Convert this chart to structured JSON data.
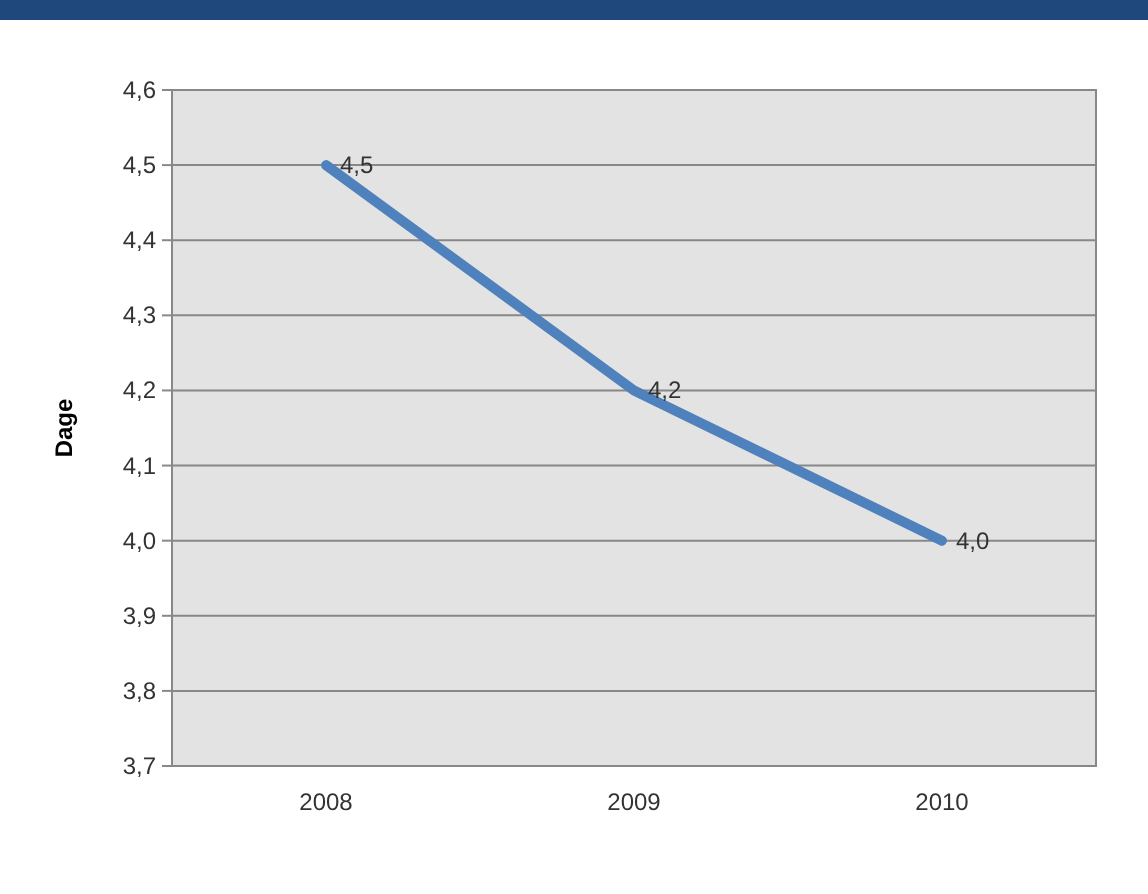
{
  "chart_data": {
    "type": "line",
    "ylabel": "Dage",
    "categories": [
      "2008",
      "2009",
      "2010"
    ],
    "series": [
      {
        "color": "#4f81bd",
        "values": [
          4.5,
          4.2,
          4.0
        ],
        "value_labels": [
          "4,5",
          "4,2",
          "4,0"
        ]
      }
    ],
    "ylim": [
      3.7,
      4.6
    ],
    "yticks": [
      {
        "value": 3.7,
        "label": "3,7"
      },
      {
        "value": 3.8,
        "label": "3,8"
      },
      {
        "value": 3.9,
        "label": "3,9"
      },
      {
        "value": 4.0,
        "label": "4,0"
      },
      {
        "value": 4.1,
        "label": "4,1"
      },
      {
        "value": 4.2,
        "label": "4,2"
      },
      {
        "value": 4.3,
        "label": "4,3"
      },
      {
        "value": 4.4,
        "label": "4,4"
      },
      {
        "value": 4.5,
        "label": "4,5"
      },
      {
        "value": 4.6,
        "label": "4,6"
      }
    ],
    "grid": "y",
    "marker": "none",
    "line_style": "solid"
  }
}
